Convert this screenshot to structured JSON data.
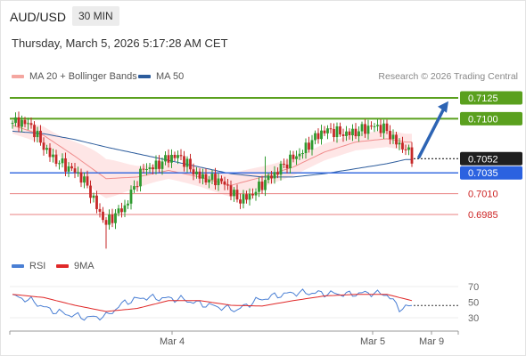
{
  "header": {
    "symbol": "AUD/USD",
    "timeframe": "30 MIN",
    "datetime": "Thursday, March 5, 2026 5:17:28 AM CET",
    "credit": "Research © 2026 Trading Central"
  },
  "legend": [
    {
      "label": "MA 20 + Bollinger Bands",
      "color": "#f4a6a0"
    },
    {
      "label": "MA 50",
      "color": "#2c5c9c"
    }
  ],
  "rsi_legend": [
    {
      "label": "RSI",
      "color": "#4a7fd4"
    },
    {
      "label": "9MA",
      "color": "#e02828"
    }
  ],
  "colors": {
    "up_candle": "#2f9a2f",
    "down_candle": "#c62828",
    "resistance_line": "#5aa01e",
    "current_line": "#3a6ee0",
    "support_line": "#e88080",
    "arrow": "#2d64b4",
    "current_price_label_bg": "#1f1f1f",
    "pivot_label_bg": "#2b62e0"
  },
  "chart_data": [
    {
      "type": "candlestick",
      "title": "AUD/USD",
      "price_levels": [
        {
          "label": "0.7125",
          "value": 0.7125,
          "kind": "resistance"
        },
        {
          "label": "0.7100",
          "value": 0.71,
          "kind": "resistance"
        },
        {
          "label": "0.7052",
          "value": 0.7052,
          "kind": "last-price"
        },
        {
          "label": "0.7035",
          "value": 0.7035,
          "kind": "pivot"
        },
        {
          "label": "0.7010",
          "value": 0.701,
          "kind": "support"
        },
        {
          "label": "0.6985",
          "value": 0.6985,
          "kind": "support"
        }
      ],
      "x_tick_labels": [
        "Mar 4",
        "Mar 5",
        "Mar 9"
      ],
      "grid": false,
      "legend_position": "top-left",
      "price_trend": {
        "x_index": [
          0,
          6,
          12,
          18,
          24,
          30,
          36,
          42,
          48,
          54,
          60,
          66,
          72,
          78,
          84,
          90,
          96,
          102,
          108,
          114,
          120,
          126,
          128
        ],
        "close": [
          0.7095,
          0.7087,
          0.7062,
          0.7037,
          0.702,
          0.6978,
          0.6988,
          0.7045,
          0.7048,
          0.705,
          0.7036,
          0.7022,
          0.7004,
          0.7017,
          0.7028,
          0.7058,
          0.7073,
          0.7083,
          0.7088,
          0.7085,
          0.7087,
          0.7067,
          0.7052
        ]
      },
      "ma20": {
        "x_index": [
          0,
          10,
          20,
          30,
          40,
          50,
          60,
          70,
          80,
          90,
          100,
          110,
          120,
          126
        ],
        "values": [
          0.7092,
          0.708,
          0.7055,
          0.7028,
          0.703,
          0.7038,
          0.703,
          0.702,
          0.703,
          0.7042,
          0.706,
          0.7072,
          0.7076,
          0.7072
        ]
      },
      "ma50": {
        "x_index": [
          0,
          10,
          20,
          30,
          40,
          50,
          60,
          70,
          80,
          90,
          100,
          110,
          120,
          126
        ],
        "values": [
          0.7085,
          0.7082,
          0.7075,
          0.7066,
          0.7058,
          0.705,
          0.7042,
          0.7034,
          0.703,
          0.703,
          0.7034,
          0.704,
          0.7046,
          0.7051
        ]
      }
    },
    {
      "type": "line",
      "title": "RSI",
      "y_ticks": [
        70,
        50,
        30
      ],
      "ylim": [
        20,
        80
      ],
      "series": [
        {
          "name": "RSI",
          "x_index": [
            0,
            6,
            12,
            18,
            24,
            30,
            36,
            42,
            48,
            54,
            60,
            66,
            72,
            78,
            84,
            90,
            96,
            102,
            108,
            114,
            120,
            124,
            128
          ],
          "values": [
            58,
            52,
            40,
            34,
            30,
            32,
            50,
            56,
            55,
            54,
            48,
            44,
            40,
            52,
            58,
            62,
            62,
            61,
            60,
            62,
            60,
            42,
            45
          ]
        },
        {
          "name": "9MA",
          "x_index": [
            0,
            10,
            20,
            30,
            40,
            50,
            60,
            70,
            80,
            90,
            100,
            110,
            120,
            128
          ],
          "values": [
            60,
            56,
            46,
            38,
            42,
            52,
            52,
            46,
            45,
            52,
            58,
            60,
            60,
            52
          ]
        }
      ]
    }
  ]
}
